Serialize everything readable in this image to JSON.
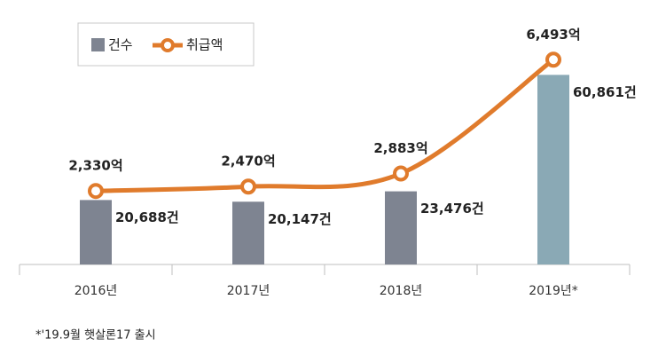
{
  "chart_data": {
    "type": "bar-line",
    "categories": [
      "2016년",
      "2017년",
      "2018년",
      "2019년*"
    ],
    "series": [
      {
        "name": "건수",
        "type": "bar",
        "colors": [
          "#7e8491",
          "#7e8491",
          "#7e8491",
          "#8aa9b5"
        ],
        "color": "#7e8491",
        "values": [
          20688,
          20147,
          23476,
          60861
        ],
        "value_labels": [
          "20,688건",
          "20,147건",
          "23,476건",
          "60,861건"
        ]
      },
      {
        "name": "취급액",
        "type": "line",
        "axis": "y2",
        "color": "#e07b2c",
        "values": [
          2330,
          2470,
          2883,
          6493
        ],
        "value_labels": [
          "2,330억",
          "2,470억",
          "2,883억",
          "6,493억"
        ]
      }
    ],
    "ylim": [
      0,
      73500
    ],
    "y2lim": [
      0,
      7260
    ],
    "legend": "top-left",
    "footnote": "*'19.9월 햇살론17 출시"
  }
}
